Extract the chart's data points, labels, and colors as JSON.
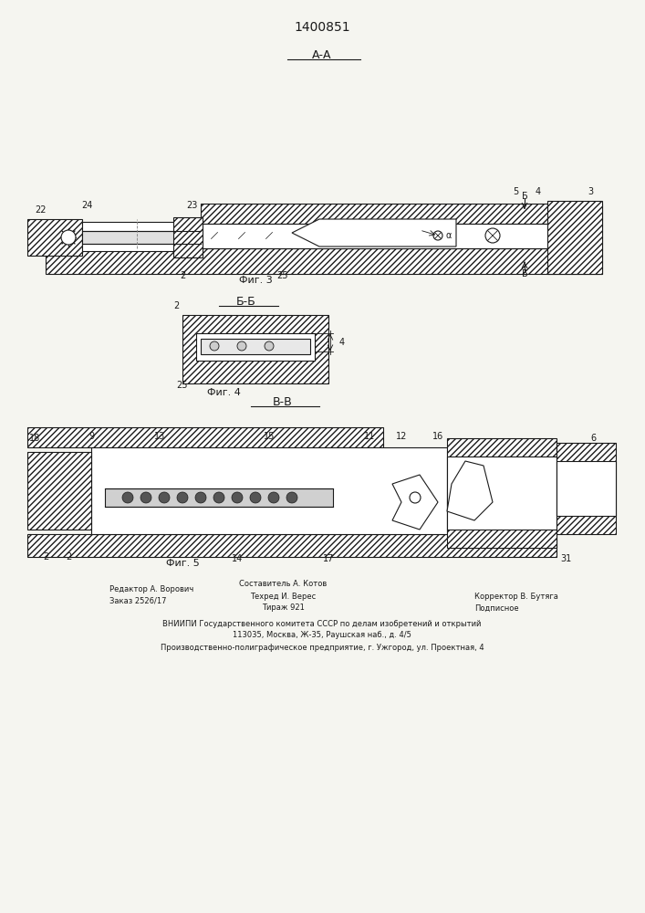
{
  "patent_number": "1400851",
  "section_a": "А-А",
  "section_b": "Б-Б",
  "section_v": "В-В",
  "fig3_label": "Фиг. 3",
  "fig4_label": "Фиг. 4",
  "fig5_label": "Фиг. 5",
  "footer_line1": "Редактор А. Ворович",
  "footer_line2": "Заказ 2526/17",
  "footer_center1": "Составитель А. Котов",
  "footer_center2": "Техред И. Верес",
  "footer_center3": "Тираж 921",
  "footer_right1": "Корректор В. Бутяга",
  "footer_right2": "Подписное",
  "footer_vniipи": "ВНИИПИ Государственного комитета СССР по делам изобретений и открытий",
  "footer_addr1": "113035, Москва, Ж-35, Раушская наб., д. 4/5",
  "footer_addr2": "Производственно-полиграфическое предприятие, г. Ужгород, ул. Проектная, 4",
  "bg_color": "#f5f5f0",
  "line_color": "#1a1a1a",
  "hatch_color": "#333333",
  "fig3_numbers": [
    "22",
    "24",
    "23",
    "25",
    "5",
    "4",
    "3",
    "2"
  ],
  "fig4_numbers": [
    "2",
    "25",
    "4"
  ],
  "fig5_numbers": [
    "18",
    "9",
    "13",
    "15",
    "11",
    "12",
    "16",
    "6",
    "2",
    "2",
    "14",
    "17",
    "31"
  ]
}
